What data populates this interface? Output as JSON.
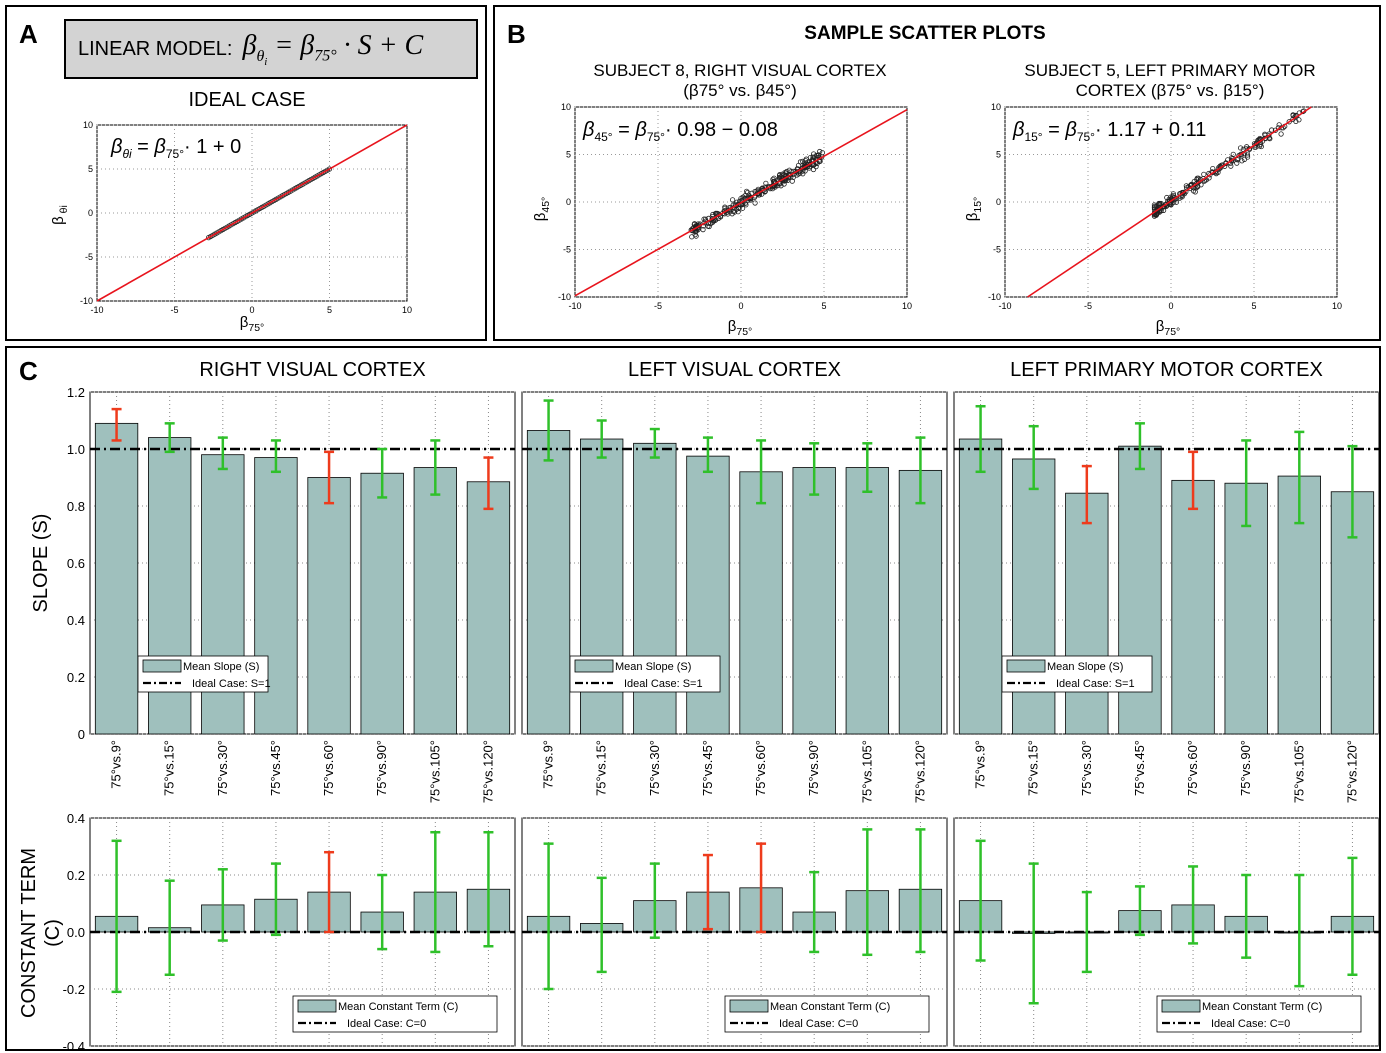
{
  "panel_a": {
    "label": "A",
    "model_label": "LINEAR MODEL:",
    "model_equation": "βθi = β75° · S + C",
    "plot_title": "IDEAL CASE"
  },
  "panel_b": {
    "label": "B",
    "title": "SAMPLE SCATTER PLOTS",
    "plot1_title_line1": "SUBJECT 8, RIGHT VISUAL CORTEX",
    "plot1_title_line2": "(β75° vs. β45°)",
    "plot2_title_line1": "SUBJECT 5, LEFT PRIMARY MOTOR",
    "plot2_title_line2": "CORTEX (β75° vs. β15°)"
  },
  "panel_c": {
    "label": "C",
    "slope_ylabel": "SLOPE (S)",
    "const_ylabel_line1": "CONSTANT TERM",
    "const_ylabel_line2": "(C)",
    "column_titles": [
      "RIGHT VISUAL CORTEX",
      "LEFT VISUAL CORTEX",
      "LEFT PRIMARY MOTOR CORTEX"
    ]
  },
  "colors": {
    "bar_fill": "#9fc0bd",
    "error_green": "#2fc02a",
    "error_red": "#ee3b1c",
    "fit_line": "#e8141d"
  },
  "chart_data": [
    {
      "id": "A-ideal",
      "type": "scatter",
      "title": "IDEAL CASE",
      "xlabel": "β75°",
      "ylabel": "β θi",
      "equation": "βθi = β75° · 1 + 0",
      "xlim": [
        -10,
        10
      ],
      "ylim": [
        -10,
        10
      ],
      "xticks": [
        -10,
        -5,
        0,
        5,
        10
      ],
      "yticks": [
        -10,
        -5,
        0,
        5,
        10
      ],
      "grid": true,
      "fit": {
        "slope": 1,
        "intercept": 0
      },
      "point_range": [
        -2.8,
        5
      ]
    },
    {
      "id": "B-subject8",
      "type": "scatter",
      "title": "SUBJECT 8, RIGHT VISUAL CORTEX (β75° vs. β45°)",
      "xlabel": "β75°",
      "ylabel": "β45°",
      "equation": "β45° = β75° · 0.98 − 0.08",
      "xlim": [
        -10,
        10
      ],
      "ylim": [
        -10,
        10
      ],
      "xticks": [
        -10,
        -5,
        0,
        5,
        10
      ],
      "yticks": [
        -10,
        -5,
        0,
        5,
        10
      ],
      "grid": true,
      "fit": {
        "slope": 0.98,
        "intercept": -0.08
      },
      "point_range": [
        -3,
        5
      ]
    },
    {
      "id": "B-subject5",
      "type": "scatter",
      "title": "SUBJECT 5, LEFT PRIMARY MOTOR CORTEX (β75° vs. β15°)",
      "xlabel": "β75°",
      "ylabel": "β15°",
      "equation": "β15° = β75° · 1.17 + 0.11",
      "xlim": [
        -10,
        10
      ],
      "ylim": [
        -10,
        10
      ],
      "xticks": [
        -10,
        -5,
        0,
        5,
        10
      ],
      "yticks": [
        -10,
        -5,
        0,
        5,
        10
      ],
      "grid": true,
      "fit": {
        "slope": 1.17,
        "intercept": 0.11
      },
      "point_range": [
        -1,
        8
      ]
    },
    {
      "id": "C-slope-right-visual",
      "type": "bar",
      "title": "RIGHT VISUAL CORTEX",
      "ylabel": "SLOPE (S)",
      "categories": [
        "75°vs.9°",
        "75°vs.15°",
        "75°vs.30°",
        "75°vs.45°",
        "75°vs.60°",
        "75°vs.90°",
        "75°vs.105°",
        "75°vs.120°"
      ],
      "values": [
        1.09,
        1.04,
        0.98,
        0.97,
        0.9,
        0.915,
        0.935,
        0.885
      ],
      "err_low": [
        1.03,
        0.99,
        0.93,
        0.92,
        0.81,
        0.83,
        0.84,
        0.79
      ],
      "err_high": [
        1.14,
        1.09,
        1.04,
        1.03,
        0.99,
        1.0,
        1.03,
        0.97
      ],
      "err_color": [
        "red",
        "green",
        "green",
        "green",
        "red",
        "green",
        "green",
        "red"
      ],
      "ylim": [
        0,
        1.2
      ],
      "yticks": [
        "0",
        "0.2",
        "0.4",
        "0.6",
        "0.8",
        "1.0",
        "1.2"
      ],
      "reference_line": 1.0,
      "legend": [
        "Mean Slope (S)",
        "Ideal Case: S=1"
      ]
    },
    {
      "id": "C-slope-left-visual",
      "type": "bar",
      "title": "LEFT VISUAL CORTEX",
      "categories": [
        "75°vs.9°",
        "75°vs.15°",
        "75°vs.30°",
        "75°vs.45°",
        "75°vs.60°",
        "75°vs.90°",
        "75°vs.105°",
        "75°vs.120°"
      ],
      "values": [
        1.065,
        1.035,
        1.02,
        0.975,
        0.92,
        0.935,
        0.935,
        0.925
      ],
      "err_low": [
        0.96,
        0.97,
        0.97,
        0.92,
        0.81,
        0.84,
        0.85,
        0.81
      ],
      "err_high": [
        1.17,
        1.1,
        1.07,
        1.04,
        1.03,
        1.02,
        1.02,
        1.04
      ],
      "err_color": [
        "green",
        "green",
        "green",
        "green",
        "green",
        "green",
        "green",
        "green"
      ],
      "ylim": [
        0,
        1.2
      ],
      "reference_line": 1.0,
      "legend": [
        "Mean Slope (S)",
        "Ideal Case: S=1"
      ]
    },
    {
      "id": "C-slope-left-motor",
      "type": "bar",
      "title": "LEFT PRIMARY MOTOR CORTEX",
      "categories": [
        "75°vs.9°",
        "75°vs.15°",
        "75°vs.30°",
        "75°vs.45°",
        "75°vs.60°",
        "75°vs.90°",
        "75°vs.105°",
        "75°vs.120°"
      ],
      "values": [
        1.035,
        0.965,
        0.845,
        1.01,
        0.89,
        0.88,
        0.905,
        0.85
      ],
      "err_low": [
        0.92,
        0.86,
        0.74,
        0.93,
        0.79,
        0.73,
        0.74,
        0.69
      ],
      "err_high": [
        1.15,
        1.08,
        0.94,
        1.09,
        0.99,
        1.03,
        1.06,
        1.01
      ],
      "err_color": [
        "green",
        "green",
        "red",
        "green",
        "red",
        "green",
        "green",
        "green"
      ],
      "ylim": [
        0,
        1.2
      ],
      "reference_line": 1.0,
      "legend": [
        "Mean Slope (S)",
        "Ideal Case: S=1"
      ]
    },
    {
      "id": "C-const-right-visual",
      "type": "bar",
      "ylabel": "CONSTANT TERM (C)",
      "categories": [
        "75°vs.9°",
        "75°vs.15°",
        "75°vs.30°",
        "75°vs.45°",
        "75°vs.60°",
        "75°vs.90°",
        "75°vs.105°",
        "75°vs.120°"
      ],
      "values": [
        0.055,
        0.015,
        0.095,
        0.115,
        0.14,
        0.07,
        0.14,
        0.15
      ],
      "err_low": [
        -0.21,
        -0.15,
        -0.03,
        -0.01,
        0.0,
        -0.06,
        -0.07,
        -0.05
      ],
      "err_high": [
        0.32,
        0.18,
        0.22,
        0.24,
        0.28,
        0.2,
        0.35,
        0.35
      ],
      "err_color": [
        "green",
        "green",
        "green",
        "green",
        "red",
        "green",
        "green",
        "green"
      ],
      "ylim": [
        -0.4,
        0.4
      ],
      "yticks": [
        "-0.4",
        "-0.2",
        "0.0",
        "0.2",
        "0.4"
      ],
      "reference_line": 0.0,
      "legend": [
        "Mean Constant Term (C)",
        "Ideal Case: C=0"
      ]
    },
    {
      "id": "C-const-left-visual",
      "type": "bar",
      "categories": [
        "75°vs.9°",
        "75°vs.15°",
        "75°vs.30°",
        "75°vs.45°",
        "75°vs.60°",
        "75°vs.90°",
        "75°vs.105°",
        "75°vs.120°"
      ],
      "values": [
        0.055,
        0.03,
        0.11,
        0.14,
        0.155,
        0.07,
        0.145,
        0.15
      ],
      "err_low": [
        -0.2,
        -0.14,
        -0.02,
        0.01,
        0.0,
        -0.07,
        -0.08,
        -0.07
      ],
      "err_high": [
        0.31,
        0.19,
        0.24,
        0.27,
        0.31,
        0.21,
        0.36,
        0.36
      ],
      "err_color": [
        "green",
        "green",
        "green",
        "red",
        "red",
        "green",
        "green",
        "green"
      ],
      "ylim": [
        -0.4,
        0.4
      ],
      "reference_line": 0.0,
      "legend": [
        "Mean Constant Term (C)",
        "Ideal Case: C=0"
      ]
    },
    {
      "id": "C-const-left-motor",
      "type": "bar",
      "categories": [
        "75°vs.9°",
        "75°vs.15°",
        "75°vs.30°",
        "75°vs.45°",
        "75°vs.60°",
        "75°vs.90°",
        "75°vs.105°",
        "75°vs.120°"
      ],
      "values": [
        0.11,
        -0.005,
        0.0,
        0.075,
        0.095,
        0.055,
        0.0,
        0.055
      ],
      "err_low": [
        -0.1,
        -0.25,
        -0.14,
        -0.01,
        -0.04,
        -0.09,
        -0.19,
        -0.15
      ],
      "err_high": [
        0.32,
        0.24,
        0.14,
        0.16,
        0.23,
        0.2,
        0.2,
        0.26
      ],
      "err_color": [
        "green",
        "green",
        "green",
        "green",
        "green",
        "green",
        "green",
        "green"
      ],
      "ylim": [
        -0.4,
        0.4
      ],
      "reference_line": 0.0,
      "legend": [
        "Mean Constant Term (C)",
        "Ideal Case: C=0"
      ]
    }
  ]
}
